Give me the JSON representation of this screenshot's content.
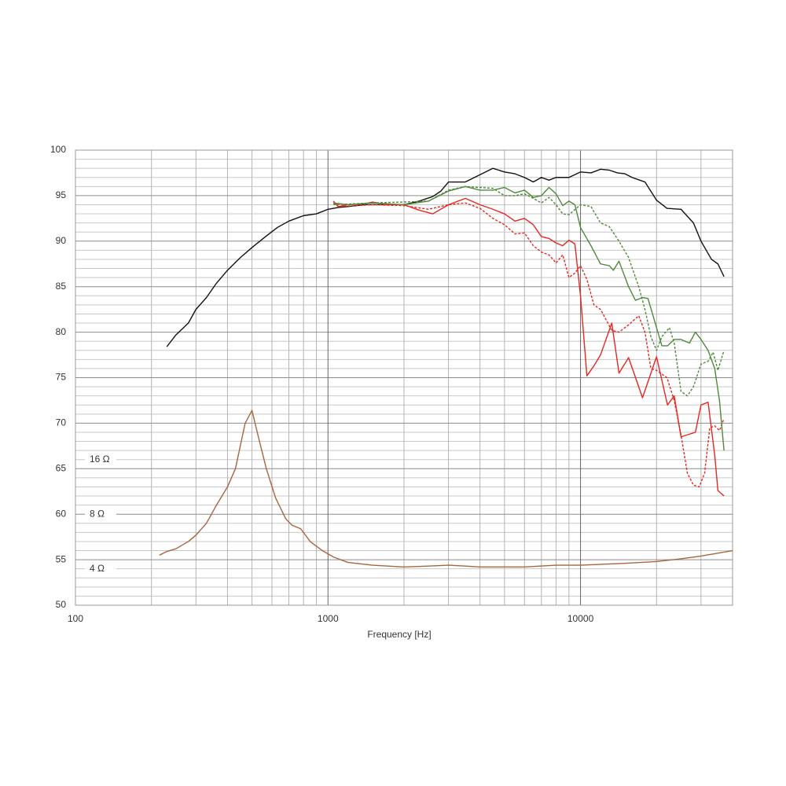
{
  "chart_data": {
    "type": "line",
    "xlabel": "Frequency [Hz]",
    "xscale": "log",
    "xlim": [
      100,
      40000
    ],
    "ylim": [
      50,
      100
    ],
    "xticks": [
      100,
      1000,
      10000
    ],
    "xminorticks": [
      200,
      300,
      400,
      500,
      600,
      700,
      800,
      900,
      2000,
      3000,
      4000,
      5000,
      6000,
      7000,
      8000,
      9000,
      20000,
      30000
    ],
    "yticks": [
      50,
      55,
      60,
      65,
      70,
      75,
      80,
      85,
      90,
      95,
      100
    ],
    "yminorticks": [
      51,
      52,
      53,
      54,
      56,
      57,
      58,
      59,
      61,
      62,
      63,
      64,
      66,
      67,
      68,
      69,
      71,
      72,
      73,
      74,
      76,
      77,
      78,
      79,
      81,
      82,
      83,
      84,
      86,
      87,
      88,
      89,
      91,
      92,
      93,
      94,
      96,
      97,
      98,
      99
    ],
    "grid": true,
    "annotations": [
      {
        "text": "16 Ω",
        "y": 66
      },
      {
        "text": "8 Ω",
        "y": 60
      },
      {
        "text": "4 Ω",
        "y": 54
      }
    ],
    "series": [
      {
        "color": "#111111",
        "dashed": false,
        "x": [
          230,
          250,
          280,
          300,
          330,
          360,
          400,
          450,
          500,
          560,
          630,
          700,
          800,
          900,
          1000,
          1100,
          1200,
          1400,
          1600,
          1800,
          2000,
          2300,
          2600,
          2800,
          3000,
          3500,
          4000,
          4500,
          5000,
          5500,
          6000,
          6500,
          7000,
          7500,
          8000,
          9000,
          10000,
          11000,
          12000,
          13000,
          14000,
          15000,
          16000,
          18000,
          20000,
          22000,
          25000,
          28000,
          30000,
          33000,
          35000,
          37000
        ],
        "values": [
          78.4,
          79.7,
          81,
          82.5,
          83.8,
          85.3,
          86.8,
          88.2,
          89.3,
          90.4,
          91.5,
          92.2,
          92.8,
          93,
          93.5,
          93.7,
          93.8,
          94,
          94,
          94,
          94,
          94.4,
          94.9,
          95.5,
          96.5,
          96.5,
          97.3,
          98,
          97.6,
          97.4,
          97,
          96.5,
          97,
          96.7,
          97,
          97,
          97.6,
          97.5,
          97.9,
          97.8,
          97.5,
          97.4,
          97,
          96.5,
          94.5,
          93.6,
          93.5,
          92,
          90,
          88,
          87.5,
          86.1
        ]
      },
      {
        "color": "#e8251f",
        "dashed": false,
        "x": [
          1050,
          1100,
          1200,
          1400,
          1500,
          1700,
          2000,
          2300,
          2600,
          3000,
          3500,
          4000,
          4500,
          5000,
          5500,
          6000,
          6500,
          7000,
          7500,
          8000,
          8500,
          9000,
          9500,
          10000,
          10600,
          11300,
          12000,
          13300,
          14200,
          15500,
          17600,
          20000,
          22100,
          23500,
          25000,
          28500,
          30000,
          32000,
          34000,
          35000,
          37000
        ],
        "values": [
          94.4,
          93.8,
          94,
          94.1,
          94.3,
          94,
          94,
          93.4,
          93,
          94,
          94.7,
          94,
          93.5,
          93,
          92.2,
          92.5,
          91.8,
          90.5,
          90.3,
          89.8,
          89.5,
          90.1,
          89.7,
          84,
          75.2,
          76.3,
          77.5,
          81,
          75.5,
          77.2,
          72.8,
          77.3,
          72,
          73,
          68.5,
          69,
          72,
          72.3,
          66.5,
          62.6,
          62
        ]
      },
      {
        "color": "#e8251f",
        "dashed": true,
        "x": [
          1050,
          1100,
          1500,
          2000,
          2500,
          3000,
          3500,
          4000,
          4500,
          5000,
          5500,
          6000,
          6500,
          7000,
          7500,
          8000,
          8500,
          9000,
          9500,
          10000,
          10600,
          11300,
          12000,
          13300,
          14200,
          15500,
          17000,
          18000,
          19000,
          20000,
          22000,
          23500,
          25000,
          26500,
          28000,
          29500,
          31000,
          32500,
          34000,
          35500,
          37000
        ],
        "values": [
          94.2,
          93.8,
          94,
          93.9,
          93.5,
          94,
          94.2,
          93.6,
          92.5,
          91.8,
          90.8,
          90.9,
          89.5,
          88.8,
          88.5,
          87.6,
          88.5,
          86,
          86.5,
          87.3,
          85.8,
          83,
          82.5,
          80.2,
          80,
          80.8,
          81.8,
          80,
          76,
          75.8,
          75,
          72.5,
          68.7,
          64.5,
          63.2,
          63,
          64.5,
          69.5,
          69.7,
          69.2,
          70.5
        ]
      },
      {
        "color": "#4e8a3a",
        "dashed": false,
        "x": [
          1050,
          1200,
          1500,
          2000,
          2500,
          3000,
          3500,
          4000,
          4500,
          5000,
          5500,
          6000,
          6500,
          7000,
          7500,
          8000,
          8500,
          9000,
          9500,
          10000,
          11000,
          12000,
          13000,
          13500,
          14200,
          15500,
          16500,
          17600,
          18500,
          20000,
          21000,
          22100,
          23500,
          25000,
          27000,
          28500,
          30000,
          32000,
          34000,
          35500,
          37000
        ],
        "values": [
          94.2,
          94,
          94.2,
          94,
          94.4,
          95.5,
          96,
          95.6,
          95.6,
          95.9,
          95.3,
          95.6,
          94.8,
          95,
          95.9,
          95.2,
          93.9,
          94.4,
          94,
          91.5,
          89.5,
          87.5,
          87.3,
          86.8,
          87.8,
          85,
          83.5,
          83.8,
          83.7,
          80.5,
          78.5,
          78.5,
          79.2,
          79.2,
          78.8,
          80,
          79.2,
          78,
          76,
          72.5,
          67
        ]
      },
      {
        "color": "#4e8a3a",
        "dashed": true,
        "x": [
          1050,
          1500,
          2000,
          2500,
          3000,
          3500,
          4000,
          4500,
          5000,
          5500,
          6000,
          6500,
          7000,
          7500,
          8000,
          8500,
          9000,
          10000,
          11000,
          12000,
          13000,
          14200,
          15500,
          17000,
          18000,
          19000,
          20000,
          21000,
          22500,
          23500,
          25000,
          26500,
          28000,
          30000,
          32000,
          33500,
          35000,
          37000
        ],
        "values": [
          94,
          94.2,
          94.3,
          94.4,
          95.6,
          96,
          95.9,
          95.8,
          95,
          95,
          95.2,
          94.7,
          94.2,
          94.8,
          94,
          93,
          92.9,
          94,
          93.8,
          92,
          91.6,
          90,
          88.2,
          85,
          82.5,
          79.5,
          78,
          79.5,
          80.5,
          78.8,
          73.5,
          73,
          74,
          76.5,
          76.8,
          77.8,
          75.8,
          78
        ]
      },
      {
        "color": "#a8653d",
        "dashed": false,
        "x": [
          215,
          230,
          250,
          280,
          300,
          330,
          360,
          400,
          430,
          470,
          500,
          530,
          570,
          620,
          680,
          720,
          780,
          850,
          950,
          1050,
          1200,
          1500,
          2000,
          2500,
          3000,
          3500,
          4000,
          5000,
          6000,
          8000,
          10000,
          15000,
          20000,
          25000,
          30000,
          40000
        ],
        "values": [
          55.5,
          55.9,
          56.2,
          57,
          57.7,
          59,
          60.9,
          63,
          65,
          70,
          71.4,
          68.5,
          65,
          61.8,
          59.5,
          58.8,
          58.4,
          57,
          56,
          55.3,
          54.7,
          54.4,
          54.2,
          54.3,
          54.4,
          54.3,
          54.2,
          54.2,
          54.2,
          54.4,
          54.4,
          54.6,
          54.8,
          55.1,
          55.4,
          56
        ]
      }
    ]
  }
}
